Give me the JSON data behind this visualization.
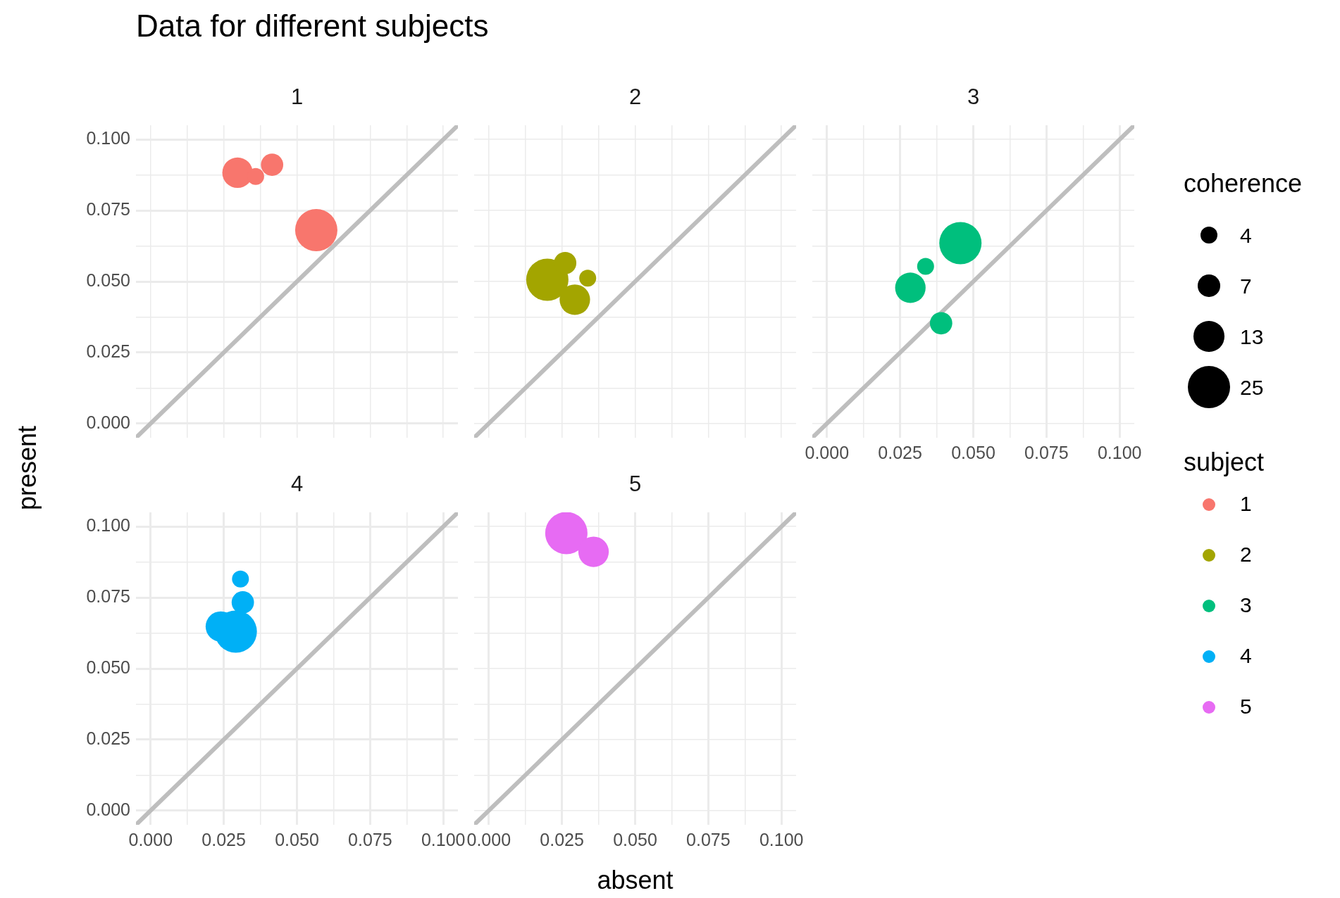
{
  "chart_data": [
    {
      "type": "bubble",
      "title": "Data for different subjects",
      "subtitle": "1",
      "ylabel": "present",
      "xlim": [
        -0.005,
        0.105
      ],
      "ylim": [
        -0.005,
        0.105
      ],
      "xticks": [
        {
          "value": 0,
          "label": null
        },
        {
          "value": 0.0125,
          "label": null
        },
        {
          "value": 0.025,
          "label": null
        },
        {
          "value": 0.0375,
          "label": null
        },
        {
          "value": 0.05,
          "label": null
        },
        {
          "value": 0.0625,
          "label": null
        },
        {
          "value": 0.075,
          "label": null
        },
        {
          "value": 0.0875,
          "label": null
        },
        {
          "value": 0.1,
          "label": null
        }
      ],
      "yticks": [
        {
          "value": 0,
          "label": "0.000"
        },
        {
          "value": 0.0125,
          "label": null
        },
        {
          "value": 0.025,
          "label": "0.025"
        },
        {
          "value": 0.0375,
          "label": null
        },
        {
          "value": 0.05,
          "label": "0.050"
        },
        {
          "value": 0.0625,
          "label": null
        },
        {
          "value": 0.075,
          "label": "0.075"
        },
        {
          "value": 0.0875,
          "label": null
        },
        {
          "value": 0.1,
          "label": "0.100"
        }
      ],
      "tick_labels": "y",
      "grid": true,
      "series": [
        {
          "type": "line",
          "color": "#bebebe",
          "marker": "none",
          "x": [
            -0.005,
            0.105
          ],
          "values": [
            -0.005,
            0.105
          ]
        },
        {
          "name": "1",
          "color": "#f8766d",
          "marker": "circle",
          "x": [
            0.0297,
            0.0359,
            0.0415,
            0.0566
          ],
          "values": [
            0.0883,
            0.087,
            0.0911,
            0.0681
          ],
          "sizes": [
            0.52,
            0.16,
            0.28,
            1
          ]
        }
      ]
    },
    {
      "type": "bubble",
      "subtitle": "2",
      "xlim": [
        -0.005,
        0.105
      ],
      "ylim": [
        -0.005,
        0.105
      ],
      "xticks": [
        {
          "value": 0,
          "label": null
        },
        {
          "value": 0.0125,
          "label": null
        },
        {
          "value": 0.025,
          "label": null
        },
        {
          "value": 0.0375,
          "label": null
        },
        {
          "value": 0.05,
          "label": null
        },
        {
          "value": 0.0625,
          "label": null
        },
        {
          "value": 0.075,
          "label": null
        },
        {
          "value": 0.0875,
          "label": null
        },
        {
          "value": 0.1,
          "label": null
        }
      ],
      "yticks": [
        {
          "value": 0,
          "label": null
        },
        {
          "value": 0.0125,
          "label": null
        },
        {
          "value": 0.025,
          "label": null
        },
        {
          "value": 0.0375,
          "label": null
        },
        {
          "value": 0.05,
          "label": null
        },
        {
          "value": 0.0625,
          "label": null
        },
        {
          "value": 0.075,
          "label": null
        },
        {
          "value": 0.0875,
          "label": null
        },
        {
          "value": 0.1,
          "label": null
        }
      ],
      "tick_labels": false,
      "grid": true,
      "series": [
        {
          "type": "line",
          "color": "#bebebe",
          "marker": "none",
          "x": [
            -0.005,
            0.105
          ],
          "values": [
            -0.005,
            0.105
          ]
        },
        {
          "name": "2",
          "color": "#a3a500",
          "marker": "circle",
          "x": [
            0.02,
            0.0261,
            0.0338,
            0.0294
          ],
          "values": [
            0.0506,
            0.0565,
            0.0512,
            0.0436
          ],
          "sizes": [
            1,
            0.28,
            0.16,
            0.52
          ]
        }
      ]
    },
    {
      "type": "bubble",
      "subtitle": "3",
      "xlim": [
        -0.005,
        0.105
      ],
      "ylim": [
        -0.005,
        0.105
      ],
      "xticks": [
        {
          "value": 0,
          "label": "0.000"
        },
        {
          "value": 0.0125,
          "label": null
        },
        {
          "value": 0.025,
          "label": "0.025"
        },
        {
          "value": 0.0375,
          "label": null
        },
        {
          "value": 0.05,
          "label": "0.050"
        },
        {
          "value": 0.0625,
          "label": null
        },
        {
          "value": 0.075,
          "label": "0.075"
        },
        {
          "value": 0.0875,
          "label": null
        },
        {
          "value": 0.1,
          "label": "0.100"
        }
      ],
      "yticks": [
        {
          "value": 0,
          "label": null
        },
        {
          "value": 0.0125,
          "label": null
        },
        {
          "value": 0.025,
          "label": null
        },
        {
          "value": 0.0375,
          "label": null
        },
        {
          "value": 0.05,
          "label": null
        },
        {
          "value": 0.0625,
          "label": null
        },
        {
          "value": 0.075,
          "label": null
        },
        {
          "value": 0.0875,
          "label": null
        },
        {
          "value": 0.1,
          "label": null
        }
      ],
      "tick_labels": "x",
      "grid": true,
      "legend": "right",
      "legend_title": "subject",
      "annotations": [
        "coherence"
      ],
      "size_legend": [
        4,
        7,
        13,
        25
      ],
      "series": [
        {
          "type": "line",
          "color": "#bebebe",
          "marker": "none",
          "x": [
            -0.005,
            0.105
          ],
          "values": [
            -0.005,
            0.105
          ]
        },
        {
          "name": "3",
          "color": "#00bf7d",
          "marker": "circle",
          "x": [
            0.0456,
            0.0337,
            0.0285,
            0.039
          ],
          "values": [
            0.0635,
            0.0553,
            0.0478,
            0.0353
          ],
          "sizes": [
            25,
            4,
            13,
            7
          ]
        }
      ]
    },
    {
      "type": "bubble",
      "subtitle": "4",
      "xlim": [
        -0.005,
        0.105
      ],
      "ylim": [
        -0.005,
        0.105
      ],
      "xticks": [
        {
          "value": 0,
          "label": "0.000"
        },
        {
          "value": 0.0125,
          "label": null
        },
        {
          "value": 0.025,
          "label": "0.025"
        },
        {
          "value": 0.0375,
          "label": null
        },
        {
          "value": 0.05,
          "label": "0.050"
        },
        {
          "value": 0.0625,
          "label": null
        },
        {
          "value": 0.075,
          "label": "0.075"
        },
        {
          "value": 0.0875,
          "label": null
        },
        {
          "value": 0.1,
          "label": "0.100"
        }
      ],
      "yticks": [
        {
          "value": 0,
          "label": "0.000"
        },
        {
          "value": 0.0125,
          "label": null
        },
        {
          "value": 0.025,
          "label": "0.025"
        },
        {
          "value": 0.0375,
          "label": null
        },
        {
          "value": 0.05,
          "label": "0.050"
        },
        {
          "value": 0.0625,
          "label": null
        },
        {
          "value": 0.075,
          "label": "0.075"
        },
        {
          "value": 0.0875,
          "label": null
        },
        {
          "value": 0.1,
          "label": "0.100"
        }
      ],
      "grid": true,
      "series": [
        {
          "type": "line",
          "color": "#bebebe",
          "marker": "none",
          "x": [
            -0.005,
            0.105
          ],
          "values": [
            -0.005,
            0.105
          ]
        },
        {
          "name": "4",
          "color": "#00b0f6",
          "marker": "circle",
          "x": [
            0.0307,
            0.0315,
            0.024,
            0.0291
          ],
          "values": [
            0.0815,
            0.0733,
            0.0648,
            0.063
          ],
          "sizes": [
            0.16,
            0.28,
            0.52,
            1
          ]
        }
      ]
    },
    {
      "type": "bubble",
      "subtitle": "5",
      "xlabel": "absent",
      "xlim": [
        -0.005,
        0.105
      ],
      "ylim": [
        -0.005,
        0.105
      ],
      "xticks": [
        {
          "value": 0,
          "label": "0.000"
        },
        {
          "value": 0.0125,
          "label": null
        },
        {
          "value": 0.025,
          "label": "0.025"
        },
        {
          "value": 0.0375,
          "label": null
        },
        {
          "value": 0.05,
          "label": "0.050"
        },
        {
          "value": 0.0625,
          "label": null
        },
        {
          "value": 0.075,
          "label": "0.075"
        },
        {
          "value": 0.0875,
          "label": null
        },
        {
          "value": 0.1,
          "label": "0.100"
        }
      ],
      "yticks": [
        {
          "value": 0,
          "label": null
        },
        {
          "value": 0.0125,
          "label": null
        },
        {
          "value": 0.025,
          "label": null
        },
        {
          "value": 0.0375,
          "label": null
        },
        {
          "value": 0.05,
          "label": null
        },
        {
          "value": 0.0625,
          "label": null
        },
        {
          "value": 0.075,
          "label": null
        },
        {
          "value": 0.0875,
          "label": null
        },
        {
          "value": 0.1,
          "label": null
        }
      ],
      "tick_labels": "x",
      "grid": true,
      "series": [
        {
          "type": "line",
          "color": "#bebebe",
          "marker": "none",
          "x": [
            -0.005,
            0.105
          ],
          "values": [
            -0.005,
            0.105
          ]
        },
        {
          "name": "5",
          "color": "#e76bf3",
          "marker": "circle",
          "x": [
            0.0265,
            0.0358
          ],
          "values": [
            0.0977,
            0.0911
          ],
          "sizes": [
            1,
            0.52
          ]
        }
      ]
    }
  ]
}
